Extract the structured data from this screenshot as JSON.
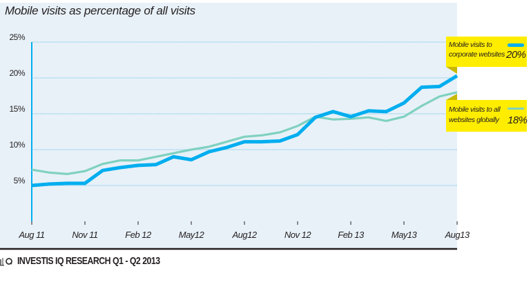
{
  "chart_data": {
    "type": "line",
    "title": "Mobile visits as percentage of all visits",
    "xlabel": "",
    "ylabel": "",
    "ylim": [
      0,
      25
    ],
    "yticks": [
      5,
      10,
      15,
      20,
      25
    ],
    "ytick_labels": [
      "5%",
      "10%",
      "15%",
      "20%",
      "25%"
    ],
    "grid": "horizontal dotted",
    "x": [
      "Aug 11",
      "Sep 11",
      "Oct 11",
      "Nov 11",
      "Dec 11",
      "Jan 12",
      "Feb 12",
      "Mar 12",
      "Apr 12",
      "May 12",
      "Jun 12",
      "Jul 12",
      "Aug 12",
      "Sep 12",
      "Oct 12",
      "Nov 12",
      "Dec 12",
      "Jan 13",
      "Feb 13",
      "Mar 13",
      "Apr 13",
      "May 13",
      "Jun 13",
      "Jul 13",
      "Aug 13"
    ],
    "xtick_labels": [
      "Aug 11",
      "Nov 11",
      "Feb 12",
      "May12",
      "Aug12",
      "Nov 12",
      "Feb 13",
      "May13",
      "Aug13"
    ],
    "xtick_indices": [
      0,
      3,
      6,
      9,
      12,
      15,
      18,
      21,
      24
    ],
    "series": [
      {
        "name": "Mobile visits to corporate websites",
        "color": "#00aeef",
        "end_label": "20%",
        "values": [
          5.0,
          5.2,
          5.3,
          5.3,
          7.1,
          7.5,
          7.8,
          7.9,
          9.0,
          8.6,
          9.7,
          10.3,
          11.1,
          11.1,
          11.2,
          12.1,
          14.5,
          15.3,
          14.6,
          15.4,
          15.3,
          16.5,
          18.7,
          18.8,
          20.3
        ]
      },
      {
        "name": "Mobile visits to all websites globally",
        "color": "#7fd1c0",
        "end_label": "18%",
        "values": [
          7.2,
          6.8,
          6.6,
          7.0,
          8.0,
          8.5,
          8.5,
          9.0,
          9.5,
          10.0,
          10.4,
          11.1,
          11.8,
          12.0,
          12.4,
          13.3,
          14.6,
          14.2,
          14.3,
          14.5,
          14.0,
          14.6,
          16.1,
          17.4,
          18.0
        ]
      }
    ],
    "legend": [
      {
        "line1": "Mobile visits to",
        "line2": "corporate websites",
        "value": "20%"
      },
      {
        "line1": "Mobile visits to all",
        "line2": "websites globally",
        "value": "18%"
      }
    ],
    "legend_placement": "right"
  },
  "colors": {
    "panel_bg": "#e8f1f8",
    "legend_bg": "#ffed00",
    "legend_fold": "#c9b800",
    "axis": "#231f20",
    "y_axis": "#00aeef",
    "grid": "#7fc9ea"
  },
  "footer": {
    "logo_icon": "investis-iq-logo-icon",
    "text": "INVESTIS IQ RESEARCH Q1 - Q2 2013"
  }
}
